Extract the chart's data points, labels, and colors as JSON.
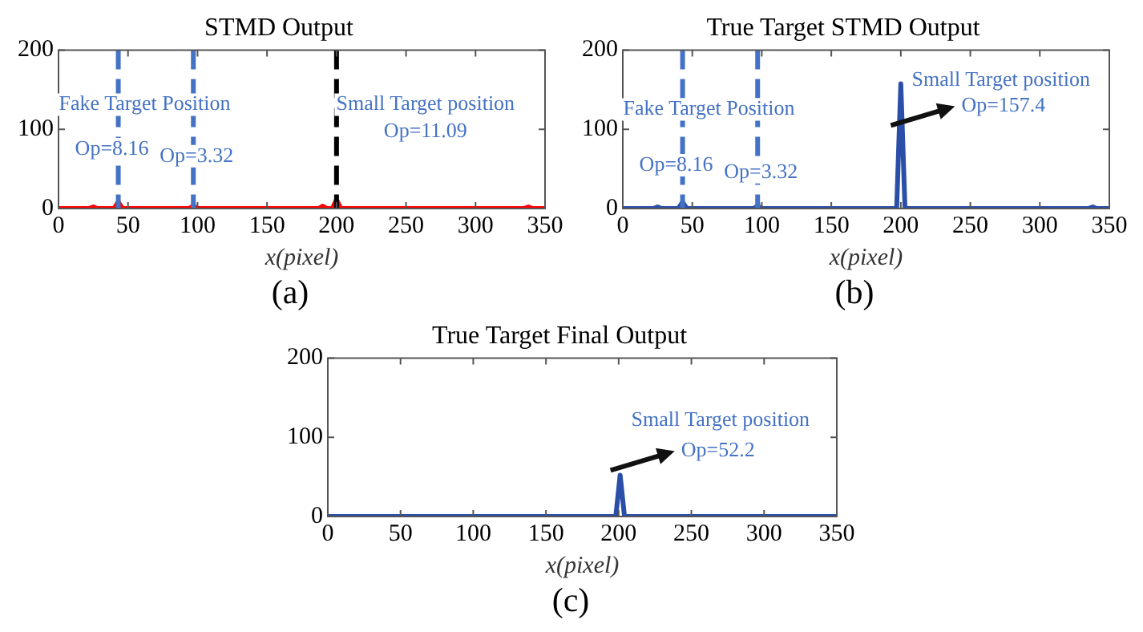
{
  "chart_data": [
    {
      "type": "line",
      "title": "STMD Output",
      "xlabel": "x(pixel)",
      "xlim": [
        0,
        350
      ],
      "ylim": [
        0,
        200
      ],
      "xticks": [
        0,
        50,
        100,
        150,
        200,
        250,
        300,
        350
      ],
      "yticks": [
        0,
        100,
        200
      ],
      "grid": false,
      "legend": false,
      "marker": "none",
      "line_style": "solid",
      "series": [
        {
          "color": "#ff0000",
          "x": [
            0,
            22,
            25,
            28,
            40,
            43,
            46,
            94,
            97,
            100,
            187,
            190,
            193,
            197,
            200,
            203,
            335,
            338,
            341,
            350
          ],
          "values": [
            0,
            0,
            2,
            0,
            0,
            8.16,
            0,
            0,
            3.32,
            0,
            0,
            3,
            0,
            0,
            11.09,
            0,
            0,
            2,
            0,
            0
          ]
        }
      ],
      "ref_lines": [
        {
          "axis": "x",
          "value": 43,
          "color": "#4472c4",
          "line_style": "dashed"
        },
        {
          "axis": "x",
          "value": 97,
          "color": "#4472c4",
          "line_style": "dashed"
        },
        {
          "axis": "x",
          "value": 200,
          "color": "#000000",
          "line_style": "dashed"
        }
      ],
      "annotations": [
        "(a)",
        "Fake Target Position",
        {
          "text": "Op=8.16",
          "x": 43,
          "y": 8.16
        },
        {
          "text": "Op=3.32",
          "x": 97,
          "y": 3.32
        },
        "Small Target position",
        "Op=11.09"
      ]
    },
    {
      "type": "line",
      "title": "True Target STMD Output",
      "xlabel": "x(pixel)",
      "xlim": [
        0,
        350
      ],
      "ylim": [
        0,
        200
      ],
      "xticks": [
        0,
        50,
        100,
        150,
        200,
        250,
        300,
        350
      ],
      "yticks": [
        0,
        100,
        200
      ],
      "grid": false,
      "legend": false,
      "marker": "none",
      "line_style": "solid",
      "series": [
        {
          "color": "#2b4fa8",
          "x": [
            0,
            22,
            25,
            28,
            40,
            43,
            46,
            94,
            97,
            100,
            197,
            200,
            203,
            335,
            338,
            341,
            350
          ],
          "values": [
            0,
            0,
            2,
            0,
            0,
            8.16,
            0,
            0,
            3.32,
            0,
            0,
            157.4,
            0,
            0,
            2,
            0,
            0
          ]
        }
      ],
      "ref_lines": [
        {
          "axis": "x",
          "value": 43,
          "color": "#4472c4",
          "line_style": "dashed"
        },
        {
          "axis": "x",
          "value": 97,
          "color": "#4472c4",
          "line_style": "dashed"
        }
      ],
      "annotations": [
        "(b)",
        "Fake Target Position",
        {
          "text": "Op=8.16",
          "x": 43,
          "y": 8.16
        },
        {
          "text": "Op=3.32",
          "x": 97,
          "y": 3.32
        },
        "Small Target position",
        {
          "text": "Op=157.4",
          "x": 200,
          "y": 157.4
        }
      ]
    },
    {
      "type": "line",
      "title": "True Target Final Output",
      "xlabel": "x(pixel)",
      "xlim": [
        0,
        350
      ],
      "ylim": [
        0,
        200
      ],
      "xticks": [
        0,
        50,
        100,
        150,
        200,
        250,
        300,
        350
      ],
      "yticks": [
        0,
        100,
        200
      ],
      "grid": false,
      "legend": false,
      "marker": "none",
      "line_style": "solid",
      "series": [
        {
          "color": "#2b4fa8",
          "x": [
            0,
            198,
            201,
            204,
            350
          ],
          "values": [
            0,
            0,
            52.2,
            0,
            0
          ]
        }
      ],
      "annotations": [
        "(c)",
        "Small Target position",
        {
          "text": "Op=52.2",
          "x": 201,
          "y": 52.2
        }
      ]
    }
  ]
}
